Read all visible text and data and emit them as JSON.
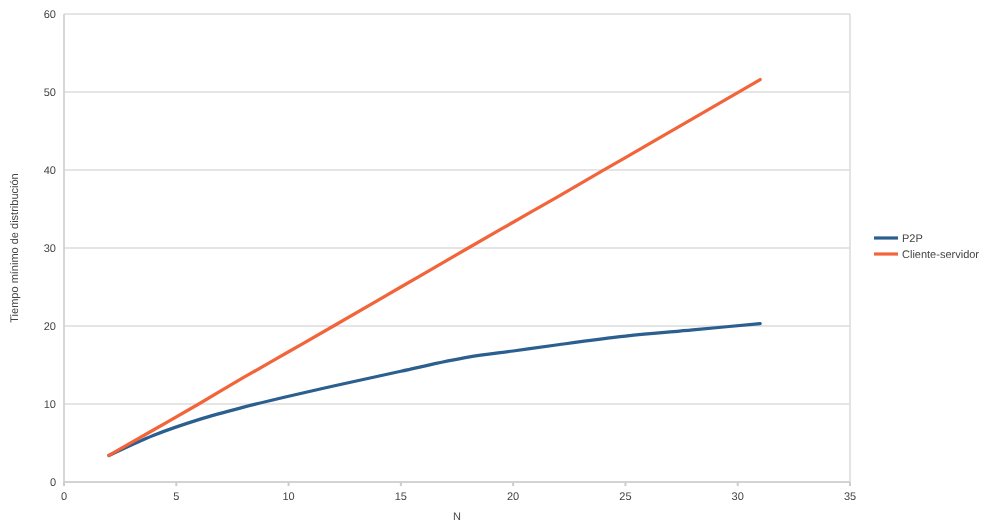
{
  "chart_data": {
    "type": "line",
    "xlabel": "N",
    "ylabel": "Tiempo mínimo de distribución",
    "xlim": [
      0,
      35
    ],
    "xticks": [
      0,
      5,
      10,
      15,
      20,
      25,
      30,
      35
    ],
    "ylim": [
      0,
      60
    ],
    "yticks": [
      0,
      10,
      20,
      30,
      40,
      50,
      60
    ],
    "grid": "y",
    "legend": "right",
    "line_style": "solid",
    "series": [
      {
        "name": "P2P",
        "color": "#2a5f8f",
        "x": [
          2,
          4,
          6,
          8,
          10,
          12,
          15,
          18,
          20,
          22,
          25,
          28,
          31
        ],
        "values": [
          3.4,
          6.0,
          8.0,
          9.6,
          11.0,
          12.3,
          14.2,
          16.0,
          16.8,
          17.6,
          18.7,
          19.5,
          20.3
        ]
      },
      {
        "name": "Cliente-servidor",
        "color": "#f2643a",
        "x": [
          2,
          4,
          6,
          8,
          10,
          12,
          15,
          18,
          20,
          22,
          25,
          28,
          31
        ],
        "values": [
          3.4,
          6.7,
          10.0,
          13.4,
          16.7,
          20.0,
          25.0,
          30.0,
          33.3,
          36.6,
          41.6,
          46.6,
          51.6
        ]
      }
    ]
  }
}
